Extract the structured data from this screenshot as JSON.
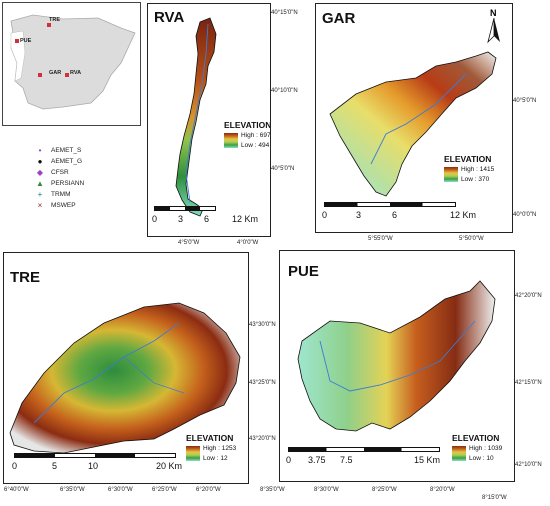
{
  "inset": {
    "sites": [
      "TRE",
      "PUE",
      "GAR",
      "RVA"
    ]
  },
  "legend": {
    "items": [
      {
        "label": "AEMET_S",
        "icon": "drop-icon",
        "color": "#8a3fc9"
      },
      {
        "label": "AEMET_G",
        "icon": "dot-icon",
        "color": "#111111"
      },
      {
        "label": "CFSR",
        "icon": "diamond-icon",
        "color": "#a040c0"
      },
      {
        "label": "PERSIANN",
        "icon": "triangle-icon",
        "color": "#2d8a3e"
      },
      {
        "label": "TRMM",
        "icon": "plus-icon",
        "color": "#1d7a8a"
      },
      {
        "label": "MSWEP",
        "icon": "cross-icon",
        "color": "#8b2a1f"
      }
    ]
  },
  "panels": {
    "rva": {
      "title": "RVA",
      "elevation": {
        "heading": "ELEVATION",
        "high": "High : 697",
        "low": "Low : 494"
      },
      "scale": {
        "ticks": [
          "0",
          "3",
          "6",
          "12 Km"
        ]
      },
      "lon_ticks": [
        "4°5'0\"W",
        "4°0'0\"W"
      ],
      "lat_ticks": [
        "40°15'0\"N",
        "40°10'0\"N",
        "40°5'0\"N"
      ]
    },
    "gar": {
      "title": "GAR",
      "north": "N",
      "elevation": {
        "heading": "ELEVATION",
        "high": "High : 1415",
        "low": "Low : 370"
      },
      "scale": {
        "ticks": [
          "0",
          "3",
          "6",
          "12 Km"
        ]
      },
      "lon_ticks": [
        "5°55'0\"W",
        "5°50'0\"W"
      ],
      "lat_ticks": [
        "40°5'0\"N",
        "40°0'0\"N"
      ]
    },
    "tre": {
      "title": "TRE",
      "elevation": {
        "heading": "ELEVATION",
        "high": "High : 1253",
        "low": "Low : 12"
      },
      "scale": {
        "ticks": [
          "0",
          "5",
          "10",
          "20 Km"
        ]
      },
      "lon_ticks": [
        "6°40'0\"W",
        "6°35'0\"W",
        "6°30'0\"W",
        "6°25'0\"W",
        "6°20'0\"W"
      ],
      "lat_ticks": [
        "43°30'0\"N",
        "43°25'0\"N",
        "43°20'0\"N"
      ]
    },
    "pue": {
      "title": "PUE",
      "elevation": {
        "heading": "ELEVATION",
        "high": "High : 1039",
        "low": "Low : 10"
      },
      "scale": {
        "ticks": [
          "0",
          "3.75",
          "7.5",
          "15 Km"
        ]
      },
      "lon_ticks": [
        "8°35'0\"W",
        "8°30'0\"W",
        "8°25'0\"W",
        "8°20'0\"W",
        "8°15'0\"W"
      ],
      "lat_ticks": [
        "42°20'0\"N",
        "42°15'0\"N",
        "42°10'0\"N"
      ]
    }
  }
}
